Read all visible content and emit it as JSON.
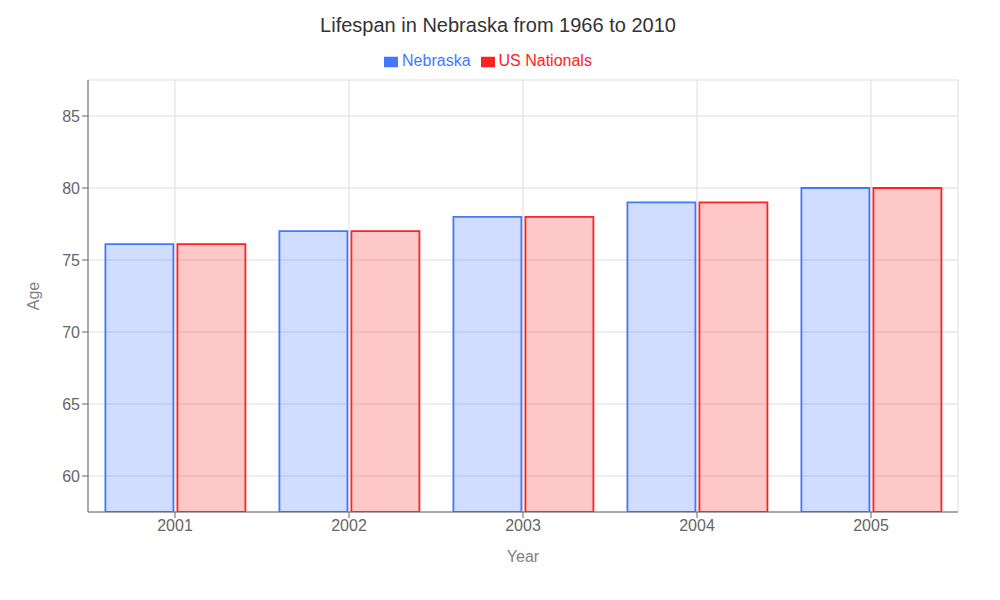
{
  "chart_data": {
    "type": "bar",
    "title": "Lifespan in Nebraska from 1966 to 2010",
    "x_label": "Year",
    "y_label": "Age",
    "categories": [
      "2001",
      "2002",
      "2003",
      "2004",
      "2005"
    ],
    "series": [
      {
        "name": "Nebraska",
        "color": "#4477ff",
        "values": [
          76.1,
          77.0,
          78.0,
          79.0,
          80.0
        ]
      },
      {
        "name": "US Nationals",
        "color": "#ff2222",
        "values": [
          76.1,
          77.0,
          78.0,
          79.0,
          80.0
        ]
      }
    ],
    "ylim": [
      57.5,
      87.5
    ],
    "yticks": [
      60,
      65,
      70,
      75,
      80,
      85
    ],
    "grid": true,
    "legend": "top"
  }
}
